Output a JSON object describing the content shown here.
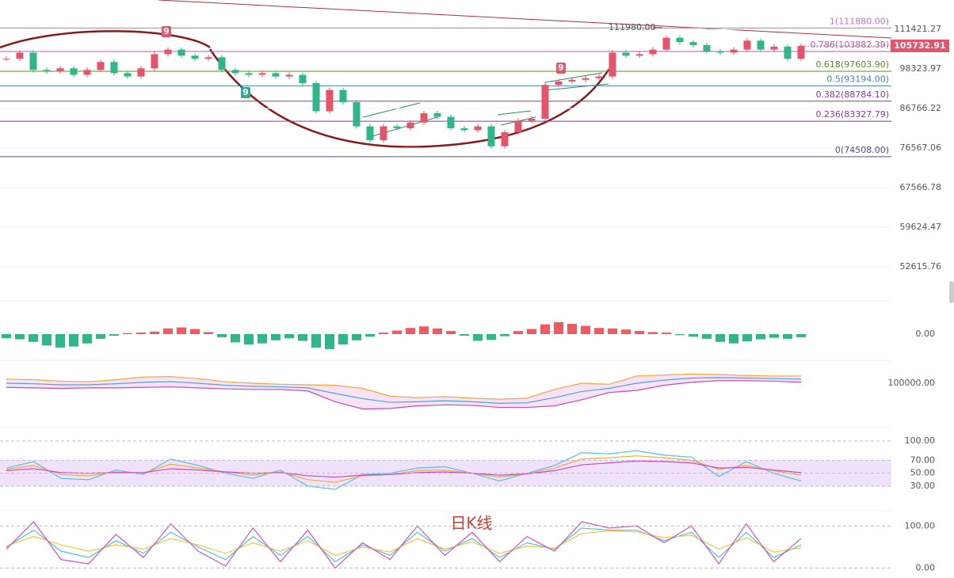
{
  "chart_data": [
    {
      "type": "candlestick",
      "log_scale": true,
      "grid": true,
      "up_color": "#e5546a",
      "down_color": "#2eb88a",
      "values": [
        101500,
        103500,
        98000,
        97500,
        98500,
        96500,
        98000,
        100500,
        97000,
        96000,
        98500,
        103000,
        104500,
        102500,
        101500,
        102000,
        98000,
        97000,
        96500,
        97000,
        96000,
        96500,
        94000,
        86000,
        92000,
        88500,
        82000,
        78500,
        82000,
        81500,
        83000,
        85500,
        84500,
        81500,
        81000,
        82000,
        77000,
        80500,
        83500,
        84000,
        93500,
        94500,
        95000,
        95500,
        96000,
        103500,
        102500,
        103000,
        104500,
        108500,
        107000,
        106000,
        104000,
        103500,
        104500,
        107500,
        104500,
        105500,
        101500,
        105732.91
      ],
      "ylim": [
        48448,
        122225
      ],
      "yticks": [
        111421.27,
        98323.97,
        86766.22,
        76567.06,
        67566.78,
        59624.47,
        52615.76
      ],
      "fib_levels": [
        {
          "label": "1(111880.00)",
          "value": 111880,
          "color": "#cf6fc6"
        },
        {
          "label": "0.786(103882.39)",
          "value": 103882.39,
          "color": "#b45bb8"
        },
        {
          "label": "0.618(97603.90)",
          "value": 97603.9,
          "color": "#5b8c2a"
        },
        {
          "label": "0.5(93194.00)",
          "value": 93194,
          "color": "#4a86b5"
        },
        {
          "label": "0.382(88784.10)",
          "value": 88784.1,
          "color": "#8a3a9a"
        },
        {
          "label": "0.236(83327.79)",
          "value": 83327.79,
          "color": "#8a3a9a"
        },
        {
          "label": "0(74508.00)",
          "value": 74508,
          "color": "#5448b0"
        }
      ],
      "annotations": [
        {
          "label": "111980.00",
          "value": 111980
        }
      ],
      "signals": [
        "9",
        "9",
        "9"
      ],
      "watermark": "日K线"
    },
    {
      "type": "bar",
      "up_color": "#ef5a63",
      "down_color": "#2eb88a",
      "values": [
        -800,
        -1000,
        -1500,
        -2200,
        -2600,
        -2400,
        -1800,
        -900,
        -300,
        200,
        300,
        500,
        1100,
        1300,
        1000,
        400,
        -600,
        -1600,
        -2000,
        -1800,
        -1200,
        -800,
        -1300,
        -2600,
        -2900,
        -2000,
        -1200,
        -500,
        300,
        700,
        1200,
        1500,
        1100,
        600,
        -300,
        -1300,
        -1100,
        -400,
        600,
        1000,
        1900,
        2300,
        2000,
        1600,
        1200,
        1100,
        900,
        600,
        400,
        300,
        -200,
        -500,
        -900,
        -1500,
        -1800,
        -1400,
        -1000,
        -700,
        -900,
        -600
      ],
      "ylim": [
        -4600,
        4600
      ],
      "yticks": [
        {
          "value": 0,
          "label": "0.00"
        }
      ]
    },
    {
      "type": "line",
      "band_fill": "#f3d6f2",
      "series": [
        {
          "color": "#f2a93b",
          "values": [
            104000,
            103500,
            102000,
            101500,
            103500,
            106000,
            106500,
            104500,
            101500,
            100000,
            99000,
            98500,
            98000,
            95000,
            87500,
            86000,
            87000,
            85500,
            84500,
            85500,
            94000,
            100000,
            99000,
            107000,
            108000,
            109000,
            108500,
            107500,
            107000,
            107000
          ]
        },
        {
          "color": "#4fa3d8",
          "values": [
            100000,
            99500,
            98500,
            98500,
            99500,
            101000,
            101500,
            100000,
            98000,
            97000,
            96500,
            95500,
            90000,
            85000,
            81500,
            82000,
            83000,
            82000,
            80500,
            81000,
            86000,
            92000,
            95000,
            100000,
            103000,
            105000,
            105500,
            105000,
            104500,
            104000
          ]
        },
        {
          "color": "#c94bc2",
          "values": [
            96000,
            95500,
            95000,
            95500,
            95500,
            96000,
            96500,
            95500,
            94500,
            94000,
            94000,
            92500,
            82000,
            75000,
            75500,
            78000,
            79000,
            78500,
            76500,
            76500,
            78000,
            84000,
            91000,
            93000,
            98000,
            101000,
            102500,
            102500,
            102000,
            101000
          ]
        }
      ],
      "ylim": [
        72300,
        118500
      ],
      "yticks": [
        {
          "value": 100000,
          "label": "100000.00"
        }
      ]
    },
    {
      "type": "line",
      "band": [
        30,
        70
      ],
      "band_fill": "#f1e2fb",
      "series": [
        {
          "color": "#4fc3e0",
          "values": [
            58,
            68,
            42,
            40,
            55,
            48,
            72,
            62,
            50,
            42,
            55,
            30,
            25,
            48,
            50,
            58,
            60,
            50,
            38,
            50,
            62,
            82,
            80,
            85,
            78,
            75,
            45,
            68,
            50,
            38
          ]
        },
        {
          "color": "#f2a93b",
          "values": [
            56,
            62,
            48,
            46,
            52,
            50,
            64,
            58,
            52,
            47,
            52,
            40,
            36,
            46,
            48,
            54,
            55,
            50,
            44,
            49,
            58,
            72,
            74,
            77,
            74,
            70,
            56,
            62,
            54,
            47
          ]
        },
        {
          "color": "#c94bc2",
          "values": [
            54,
            57,
            51,
            50,
            51,
            51,
            57,
            55,
            52,
            50,
            51,
            46,
            44,
            47,
            48,
            51,
            52,
            50,
            47,
            49,
            54,
            63,
            66,
            69,
            68,
            66,
            58,
            59,
            55,
            51
          ]
        }
      ],
      "ylim": [
        -2,
        111
      ],
      "yticks": [
        {
          "value": 100,
          "label": "100.00"
        },
        {
          "value": 70,
          "label": "70.00"
        },
        {
          "value": 50,
          "label": "50.00"
        },
        {
          "value": 30,
          "label": "30.00"
        }
      ]
    },
    {
      "type": "line",
      "series": [
        {
          "color": "#4fc3e0",
          "values": [
            50,
            90,
            40,
            25,
            65,
            35,
            85,
            50,
            20,
            75,
            30,
            75,
            15,
            55,
            30,
            85,
            40,
            70,
            25,
            60,
            45,
            95,
            90,
            90,
            65,
            85,
            25,
            85,
            25,
            55
          ]
        },
        {
          "color": "#f2c53b",
          "values": [
            52,
            75,
            55,
            40,
            55,
            45,
            70,
            55,
            35,
            60,
            40,
            65,
            30,
            50,
            38,
            70,
            45,
            62,
            35,
            52,
            47,
            82,
            88,
            86,
            72,
            78,
            45,
            72,
            38,
            48
          ]
        },
        {
          "color": "#d34fc8",
          "values": [
            45,
            110,
            20,
            10,
            80,
            25,
            105,
            40,
            5,
            95,
            15,
            90,
            0,
            60,
            20,
            100,
            30,
            85,
            15,
            75,
            40,
            110,
            95,
            100,
            60,
            100,
            10,
            105,
            15,
            70
          ]
        }
      ],
      "ylim": [
        -20,
        125
      ],
      "yticks": [
        {
          "value": 100,
          "label": "100.00"
        },
        {
          "value": 0,
          "label": "0.00"
        }
      ]
    }
  ]
}
